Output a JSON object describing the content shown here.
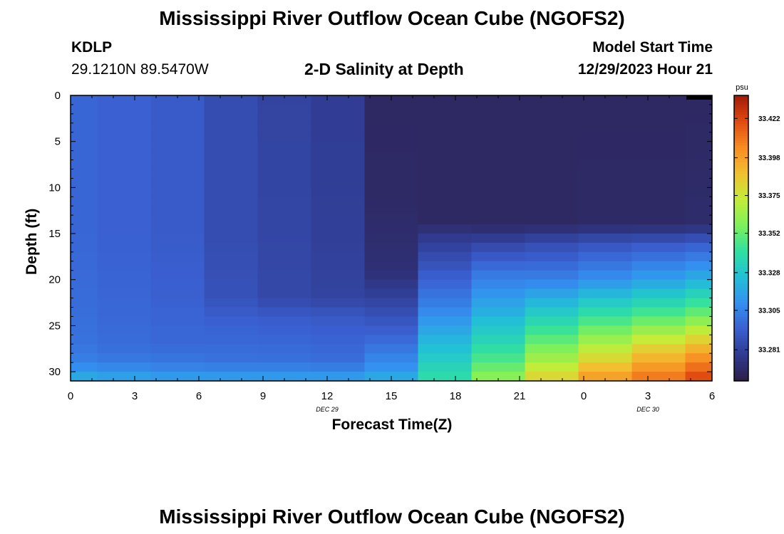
{
  "header": {
    "title": "Mississippi River Outflow Ocean Cube (NGOFS2)",
    "station_id": "KDLP",
    "coordinates": "29.1210N  89.5470W",
    "subtitle": "2-D Salinity at Depth",
    "model_start_label": "Model Start Time",
    "model_start_value": "12/29/2023 Hour 21"
  },
  "footer": {
    "title": "Mississippi River Outflow Ocean Cube (NGOFS2)"
  },
  "chart_data": {
    "type": "heatmap",
    "title": "2-D Salinity at Depth",
    "xlabel": "Forecast Time(Z)",
    "ylabel": "Depth (ft)",
    "x_tick_labels": [
      "0",
      "3",
      "6",
      "9",
      "12",
      "15",
      "18",
      "21",
      "0",
      "3",
      "6"
    ],
    "x_date_labels": [
      {
        "text": "DEC 29",
        "hour": 12
      },
      {
        "text": "DEC 30",
        "hour": 27
      }
    ],
    "y_tick_labels": [
      "0",
      "5",
      "10",
      "15",
      "20",
      "25",
      "30"
    ],
    "xlim_hours": [
      0,
      30
    ],
    "ylim_ft": [
      0,
      31
    ],
    "colorbar": {
      "unit": "psu",
      "ticks": [
        "33.281",
        "33.305",
        "33.328",
        "33.352",
        "33.375",
        "33.398",
        "33.422"
      ],
      "range": [
        33.262,
        33.436
      ],
      "colors": [
        "#2c1e47",
        "#303a8f",
        "#3a5fd0",
        "#3490f0",
        "#22c0d6",
        "#30e0a0",
        "#7ef05a",
        "#c5ec38",
        "#f0c030",
        "#f88c22",
        "#e04a10",
        "#a01a08"
      ]
    },
    "time_columns_hours": [
      0,
      2.5,
      5,
      7.5,
      10,
      12.5,
      15,
      17.5,
      20,
      22.5,
      25,
      27.5,
      30
    ],
    "profiles": [
      {
        "hour": 0,
        "depths": [
          0,
          15,
          22,
          27,
          29,
          30.3,
          31
        ],
        "values": [
          33.296,
          33.296,
          33.298,
          33.3,
          33.305,
          33.315,
          33.322
        ]
      },
      {
        "hour": 2.5,
        "depths": [
          0,
          15,
          22,
          27,
          29,
          30.3,
          31
        ],
        "values": [
          33.294,
          33.294,
          33.296,
          33.298,
          33.303,
          33.312,
          33.32
        ]
      },
      {
        "hour": 5,
        "depths": [
          0,
          15,
          22,
          27,
          29,
          30.3,
          31
        ],
        "values": [
          33.292,
          33.292,
          33.294,
          33.297,
          33.302,
          33.31,
          33.318
        ]
      },
      {
        "hour": 7.5,
        "depths": [
          0,
          15,
          22,
          24,
          29,
          30.3,
          31
        ],
        "values": [
          33.286,
          33.286,
          33.288,
          33.293,
          33.3,
          33.31,
          33.318
        ]
      },
      {
        "hour": 10,
        "depths": [
          0,
          15,
          22,
          24,
          29,
          30.3,
          31
        ],
        "values": [
          33.282,
          33.283,
          33.284,
          33.292,
          33.3,
          33.31,
          33.318
        ]
      },
      {
        "hour": 12.5,
        "depths": [
          0,
          15,
          22,
          24,
          29,
          30.3,
          31
        ],
        "values": [
          33.279,
          33.28,
          33.282,
          33.291,
          33.299,
          33.31,
          33.318
        ]
      },
      {
        "hour": 15,
        "depths": [
          0,
          12,
          19,
          22,
          26,
          30,
          31
        ],
        "values": [
          33.268,
          33.269,
          33.272,
          33.281,
          33.295,
          33.312,
          33.322
        ]
      },
      {
        "hour": 17.5,
        "depths": [
          0,
          14,
          15,
          19,
          23,
          27,
          31
        ],
        "values": [
          33.268,
          33.268,
          33.276,
          33.291,
          33.305,
          33.324,
          33.34
        ]
      },
      {
        "hour": 20,
        "depths": [
          0,
          14,
          16,
          19,
          24,
          28,
          31
        ],
        "values": [
          33.268,
          33.268,
          33.282,
          33.3,
          33.322,
          33.342,
          33.362
        ]
      },
      {
        "hour": 22.5,
        "depths": [
          0,
          14,
          16,
          20,
          24,
          28,
          31
        ],
        "values": [
          33.268,
          33.268,
          33.285,
          33.305,
          33.333,
          33.36,
          33.384
        ]
      },
      {
        "hour": 25,
        "depths": [
          0,
          14,
          16,
          20,
          24,
          28,
          31
        ],
        "values": [
          33.268,
          33.269,
          33.288,
          33.31,
          33.342,
          33.375,
          33.402
        ]
      },
      {
        "hour": 27.5,
        "depths": [
          0,
          14,
          16,
          20,
          24,
          28,
          31
        ],
        "values": [
          33.268,
          33.269,
          33.29,
          33.315,
          33.348,
          33.388,
          33.412
        ]
      },
      {
        "hour": 30,
        "depths": [
          0,
          14,
          16,
          20,
          24,
          28,
          31
        ],
        "values": [
          33.268,
          33.27,
          33.292,
          33.32,
          33.355,
          33.398,
          33.424
        ]
      }
    ],
    "grid": false
  }
}
